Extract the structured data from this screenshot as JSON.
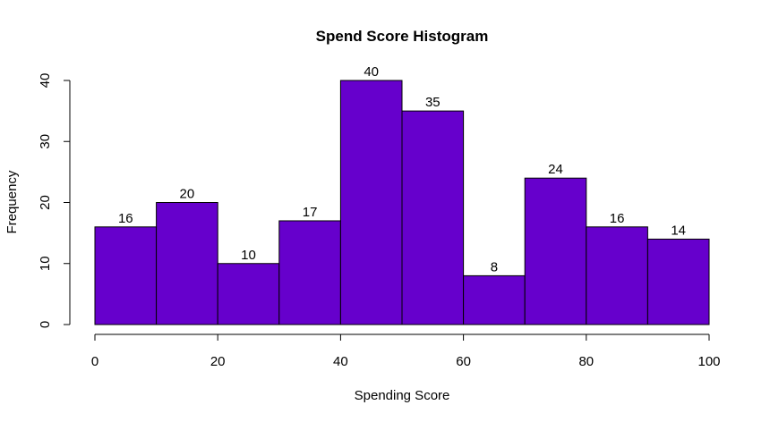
{
  "chart_data": {
    "type": "bar",
    "title": "Spend Score Histogram",
    "xlabel": "Spending Score",
    "ylabel": "Frequency",
    "bin_edges": [
      0,
      10,
      20,
      30,
      40,
      50,
      60,
      70,
      80,
      90,
      100
    ],
    "values": [
      16,
      20,
      10,
      17,
      40,
      35,
      8,
      24,
      16,
      14
    ],
    "xlim": [
      0,
      100
    ],
    "ylim": [
      0,
      40
    ],
    "x_ticks": [
      0,
      20,
      40,
      60,
      80,
      100
    ],
    "y_ticks": [
      0,
      10,
      20,
      30,
      40
    ],
    "bar_color": "#6600cc",
    "grid": false,
    "legend": "none"
  }
}
